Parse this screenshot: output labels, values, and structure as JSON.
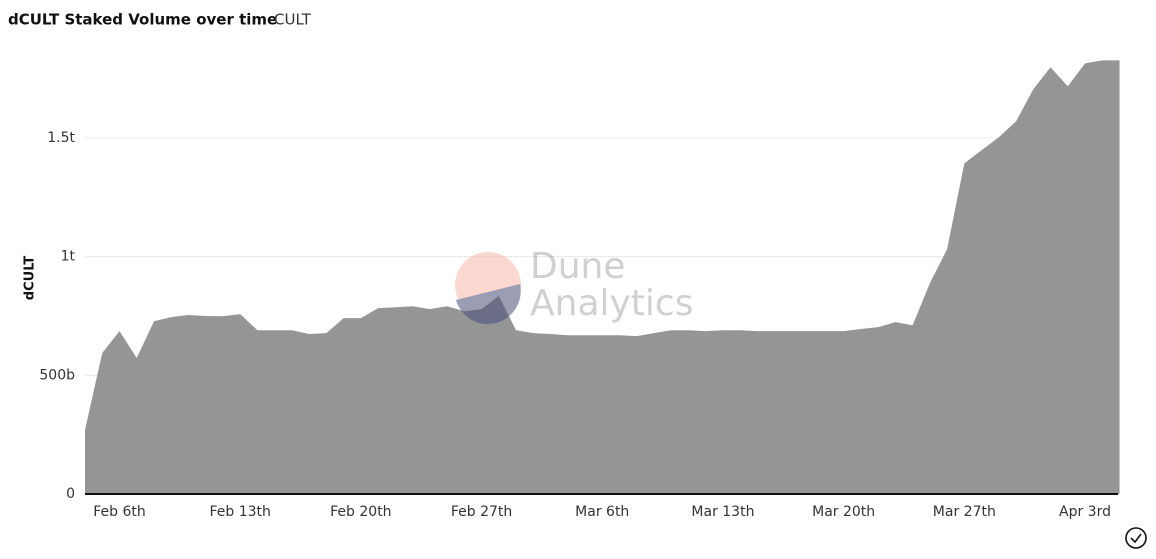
{
  "chart_data": {
    "type": "area",
    "title": "dCULT Staked Volume over time",
    "subtitle": "CULT",
    "y_label": "dCULT",
    "watermark": [
      "Dune",
      "Analytics"
    ],
    "categories": [
      null,
      null,
      "Feb 6th",
      null,
      null,
      null,
      null,
      null,
      null,
      "Feb 13th",
      null,
      null,
      null,
      null,
      null,
      null,
      "Feb 20th",
      null,
      null,
      null,
      null,
      null,
      null,
      "Feb 27th",
      null,
      null,
      null,
      null,
      null,
      null,
      "Mar 6th",
      null,
      null,
      null,
      null,
      null,
      null,
      "Mar 13th",
      null,
      null,
      null,
      null,
      null,
      null,
      "Mar 20th",
      null,
      null,
      null,
      null,
      null,
      null,
      "Mar 27th",
      null,
      null,
      null,
      null,
      null,
      null,
      "Apr 3rd",
      null,
      null
    ],
    "values": [
      270000000000.0,
      594000000000.0,
      686000000000.0,
      573000000000.0,
      728000000000.0,
      745000000000.0,
      754000000000.0,
      750000000000.0,
      749000000000.0,
      758000000000.0,
      690000000000.0,
      690000000000.0,
      690000000000.0,
      674000000000.0,
      678000000000.0,
      741000000000.0,
      741000000000.0,
      783000000000.0,
      787000000000.0,
      791000000000.0,
      779000000000.0,
      791000000000.0,
      770000000000.0,
      779000000000.0,
      834000000000.0,
      690000000000.0,
      678000000000.0,
      674000000000.0,
      669000000000.0,
      669000000000.0,
      669000000000.0,
      669000000000.0,
      665000000000.0,
      678000000000.0,
      690000000000.0,
      690000000000.0,
      686000000000.0,
      690000000000.0,
      690000000000.0,
      686000000000.0,
      686000000000.0,
      686000000000.0,
      686000000000.0,
      686000000000.0,
      686000000000.0,
      695000000000.0,
      703000000000.0,
      724000000000.0,
      711000000000.0,
      888000000000.0,
      1031000000000.0,
      1393000000000.0,
      1448000000000.0,
      1503000000000.0,
      1570000000000.0,
      1705000000000.0,
      1798000000000.0,
      1718000000000.0,
      1814000000000.0,
      1827000000000.0,
      1827000000000.0
    ],
    "color": "#959595",
    "ylim": [
      0,
      1900000000000.0
    ],
    "yticks": [
      0,
      {
        "value": 500000000000.0,
        "label": "500b"
      },
      {
        "value": 1000000000000.0,
        "label": "1t"
      },
      {
        "value": 1500000000000.0,
        "label": "1.5t"
      }
    ],
    "grid": true
  }
}
